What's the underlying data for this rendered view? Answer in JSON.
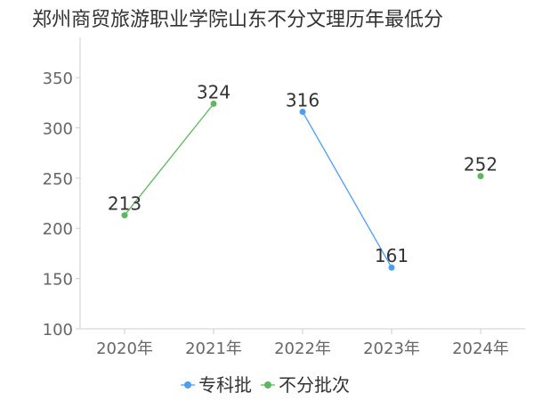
{
  "chart_data": {
    "type": "line",
    "title": "郑州商贸旅游职业学院山东不分文理历年最低分",
    "categories": [
      "2020年",
      "2021年",
      "2022年",
      "2023年",
      "2024年"
    ],
    "ylim": [
      100,
      390
    ],
    "yticks": [
      100,
      150,
      200,
      250,
      300,
      350
    ],
    "grid": false,
    "legend_position": "bottom",
    "series": [
      {
        "name": "专科批",
        "color": "#4a9ff5",
        "values": [
          null,
          null,
          316,
          161,
          null
        ]
      },
      {
        "name": "不分批次",
        "color": "#5cb85c",
        "values": [
          213,
          324,
          null,
          null,
          252
        ]
      }
    ]
  }
}
